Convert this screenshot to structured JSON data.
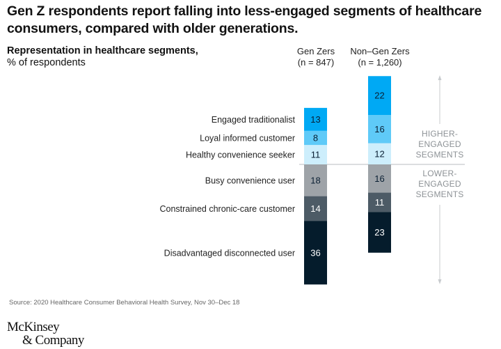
{
  "header": {
    "title": "Gen Z respondents report falling into less-engaged segments of healthcare consumers, compared with older generations."
  },
  "chart_data": {
    "type": "bar",
    "stacked": true,
    "title": "Gen Z respondents report falling into less-engaged segments of healthcare consumers, compared with older generations.",
    "ylabel_bold": "Representation in healthcare segments,",
    "ylabel_unit": "% of respondents",
    "categories": [
      "Gen Zers (n = 847)",
      "Non–Gen Zers (n = 1,260)"
    ],
    "column_headers": [
      {
        "name": "Gen Zers",
        "n": "(n = 847)"
      },
      {
        "name": "Non–Gen Zers",
        "n": "(n = 1,260)"
      }
    ],
    "baseline_note": "Higher-engaged segments stack upward from divider; lower-engaged stack downward",
    "series": [
      {
        "name": "Engaged traditionalist",
        "group": "higher",
        "color": "#00a9f4",
        "text_color": "#0a1f33",
        "values": [
          13,
          22
        ]
      },
      {
        "name": "Loyal informed customer",
        "group": "higher",
        "color": "#5fcaf8",
        "text_color": "#0a1f33",
        "values": [
          8,
          16
        ]
      },
      {
        "name": "Healthy convenience seeker",
        "group": "higher",
        "color": "#cdeefc",
        "text_color": "#0a1f33",
        "values": [
          11,
          12
        ]
      },
      {
        "name": "Busy convenience user",
        "group": "lower",
        "color": "#9ea3a8",
        "text_color": "#0a1f33",
        "values": [
          18,
          16
        ]
      },
      {
        "name": "Constrained chronic-care customer",
        "group": "lower",
        "color": "#4d5b66",
        "text_color": "#ffffff",
        "values": [
          14,
          11
        ]
      },
      {
        "name": "Disadvantaged disconnected user",
        "group": "lower",
        "color": "#051c2c",
        "text_color": "#ffffff",
        "values": [
          36,
          23
        ]
      }
    ],
    "annotations": [
      {
        "text": [
          "HIGHER-",
          "ENGAGED",
          "SEGMENTS"
        ],
        "direction": "up"
      },
      {
        "text": [
          "LOWER-",
          "ENGAGED",
          "SEGMENTS"
        ],
        "direction": "down"
      }
    ],
    "source": "Source: 2020 Healthcare Consumer Behavioral Health Survey, Nov 30–Dec 18"
  },
  "footer": {
    "logo_line1": "McKinsey",
    "logo_line2": "& Company"
  }
}
